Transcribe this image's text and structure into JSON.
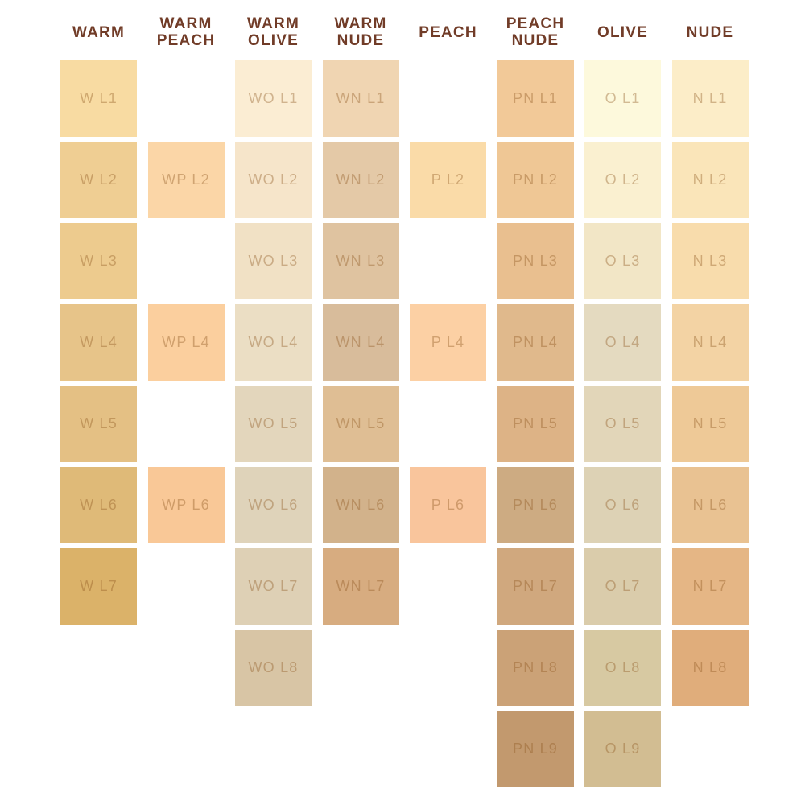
{
  "page": {
    "background": "#FFFFFF",
    "header_text_color": "#713C28",
    "swatch_label_color": "rgba(140,85,30,0.38)"
  },
  "chart_data": {
    "type": "table",
    "title": "Foundation shade chart by undertone family",
    "columns": [
      {
        "key": "warm",
        "label": "WARM",
        "label_lines": [
          "WARM"
        ],
        "swatches": [
          {
            "code": "W L1",
            "row": 1,
            "color": "#F8DBA2"
          },
          {
            "code": "W L2",
            "row": 2,
            "color": "#EFCE93"
          },
          {
            "code": "W L3",
            "row": 3,
            "color": "#EDCB8E"
          },
          {
            "code": "W L4",
            "row": 4,
            "color": "#E7C489"
          },
          {
            "code": "W L5",
            "row": 5,
            "color": "#E4C084"
          },
          {
            "code": "W L6",
            "row": 6,
            "color": "#DFBA78"
          },
          {
            "code": "W L7",
            "row": 7,
            "color": "#DBB269"
          }
        ]
      },
      {
        "key": "warm-peach",
        "label": "WARM PEACH",
        "label_lines": [
          "WARM",
          "PEACH"
        ],
        "swatches": [
          {
            "code": "WP L2",
            "row": 2,
            "color": "#FBD6A7"
          },
          {
            "code": "WP L4",
            "row": 4,
            "color": "#FBCF9E"
          },
          {
            "code": "WP L6",
            "row": 6,
            "color": "#F9C897"
          }
        ]
      },
      {
        "key": "warm-olive",
        "label": "WARM OLIVE",
        "label_lines": [
          "WARM",
          "OLIVE"
        ],
        "swatches": [
          {
            "code": "WO L1",
            "row": 1,
            "color": "#FBEDD3"
          },
          {
            "code": "WO L2",
            "row": 2,
            "color": "#F6E5CA"
          },
          {
            "code": "WO L3",
            "row": 3,
            "color": "#F1E1C5"
          },
          {
            "code": "WO L4",
            "row": 4,
            "color": "#EBDEC4"
          },
          {
            "code": "WO L5",
            "row": 5,
            "color": "#E3D6BC"
          },
          {
            "code": "WO L6",
            "row": 6,
            "color": "#DFD3BA"
          },
          {
            "code": "WO L7",
            "row": 7,
            "color": "#DED0B5"
          },
          {
            "code": "WO L8",
            "row": 8,
            "color": "#D8C5A5"
          }
        ]
      },
      {
        "key": "warm-nude",
        "label": "WARM NUDE",
        "label_lines": [
          "WARM",
          "NUDE"
        ],
        "swatches": [
          {
            "code": "WN L1",
            "row": 1,
            "color": "#F0D5B2"
          },
          {
            "code": "WN L2",
            "row": 2,
            "color": "#E4C9A7"
          },
          {
            "code": "WN L3",
            "row": 3,
            "color": "#DFC3A0"
          },
          {
            "code": "WN L4",
            "row": 4,
            "color": "#D8BC9B"
          },
          {
            "code": "WN L5",
            "row": 5,
            "color": "#DFBE94"
          },
          {
            "code": "WN L6",
            "row": 6,
            "color": "#D2B28B"
          },
          {
            "code": "WN L7",
            "row": 7,
            "color": "#D7AC80"
          }
        ]
      },
      {
        "key": "peach",
        "label": "PEACH",
        "label_lines": [
          "PEACH"
        ],
        "swatches": [
          {
            "code": "P L2",
            "row": 2,
            "color": "#FADBA8"
          },
          {
            "code": "P L4",
            "row": 4,
            "color": "#FCD0A4"
          },
          {
            "code": "P L6",
            "row": 6,
            "color": "#F9C59C"
          }
        ]
      },
      {
        "key": "peach-nude",
        "label": "PEACH NUDE",
        "label_lines": [
          "PEACH",
          "NUDE"
        ],
        "swatches": [
          {
            "code": "PN L1",
            "row": 1,
            "color": "#F2C998"
          },
          {
            "code": "PN L2",
            "row": 2,
            "color": "#EFC795"
          },
          {
            "code": "PN L3",
            "row": 3,
            "color": "#E9BF8F"
          },
          {
            "code": "PN L4",
            "row": 4,
            "color": "#E0B98C"
          },
          {
            "code": "PN L5",
            "row": 5,
            "color": "#DDB386"
          },
          {
            "code": "PN L6",
            "row": 6,
            "color": "#CDAB82"
          },
          {
            "code": "PN L7",
            "row": 7,
            "color": "#D0A87E"
          },
          {
            "code": "PN L8",
            "row": 8,
            "color": "#CBA277"
          },
          {
            "code": "PN L9",
            "row": 9,
            "color": "#C2996E"
          }
        ]
      },
      {
        "key": "olive",
        "label": "OLIVE",
        "label_lines": [
          "OLIVE"
        ],
        "swatches": [
          {
            "code": "O L1",
            "row": 1,
            "color": "#FDF9DC"
          },
          {
            "code": "O L2",
            "row": 2,
            "color": "#FAF0D0"
          },
          {
            "code": "O L3",
            "row": 3,
            "color": "#F2E6C6"
          },
          {
            "code": "O L4",
            "row": 4,
            "color": "#E4DAC0"
          },
          {
            "code": "O L5",
            "row": 5,
            "color": "#E2D6B9"
          },
          {
            "code": "O L6",
            "row": 6,
            "color": "#DDD2B5"
          },
          {
            "code": "O L7",
            "row": 7,
            "color": "#DACCAB"
          },
          {
            "code": "O L8",
            "row": 8,
            "color": "#D7C9A2"
          },
          {
            "code": "O L9",
            "row": 9,
            "color": "#D2BD92"
          }
        ]
      },
      {
        "key": "nude",
        "label": "NUDE",
        "label_lines": [
          "NUDE"
        ],
        "swatches": [
          {
            "code": "N L1",
            "row": 1,
            "color": "#FCEDC8"
          },
          {
            "code": "N L2",
            "row": 2,
            "color": "#FAE5B9"
          },
          {
            "code": "N L3",
            "row": 3,
            "color": "#F8DCAC"
          },
          {
            "code": "N L4",
            "row": 4,
            "color": "#F3D3A4"
          },
          {
            "code": "N L5",
            "row": 5,
            "color": "#EEC997"
          },
          {
            "code": "N L6",
            "row": 6,
            "color": "#E9C292"
          },
          {
            "code": "N L7",
            "row": 7,
            "color": "#E5B685"
          },
          {
            "code": "N L8",
            "row": 8,
            "color": "#E0AD7B"
          }
        ]
      }
    ]
  }
}
